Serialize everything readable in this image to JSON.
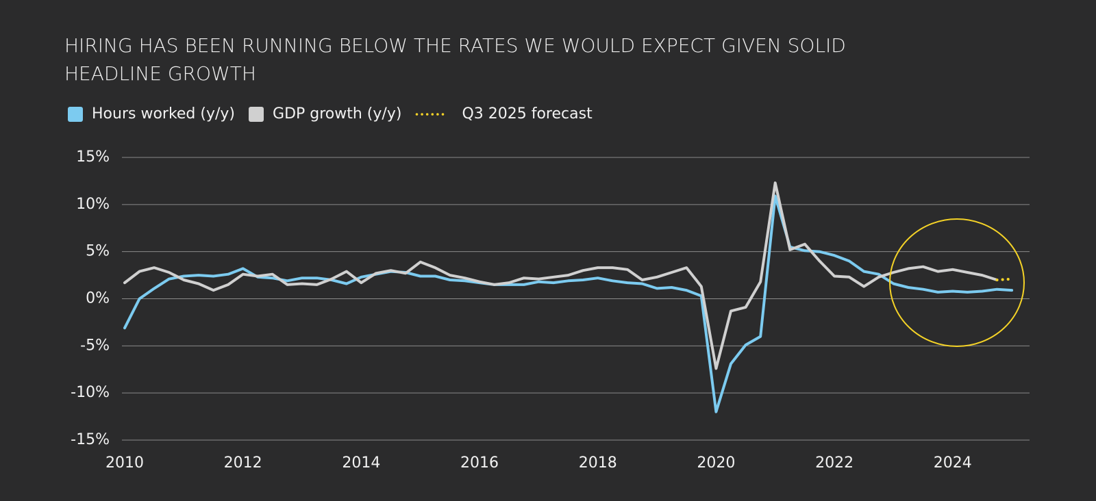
{
  "chart_data": {
    "type": "line",
    "title": [
      "HIRING HAS BEEN RUNNING BELOW THE RATES WE WOULD EXPECT GIVEN SOLID",
      "HEADLINE GROWTH"
    ],
    "x": [
      2010,
      2010.25,
      2010.5,
      2010.75,
      2011,
      2011.25,
      2011.5,
      2011.75,
      2012,
      2012.25,
      2012.5,
      2012.75,
      2013,
      2013.25,
      2013.5,
      2013.75,
      2014,
      2014.25,
      2014.5,
      2014.75,
      2015,
      2015.25,
      2015.5,
      2015.75,
      2016,
      2016.25,
      2016.5,
      2016.75,
      2017,
      2017.25,
      2017.5,
      2017.75,
      2018,
      2018.25,
      2018.5,
      2018.75,
      2019,
      2019.25,
      2019.5,
      2019.75,
      2020,
      2020.25,
      2020.5,
      2020.75,
      2021,
      2021.25,
      2021.5,
      2021.75,
      2022,
      2022.25,
      2022.5,
      2022.75,
      2023,
      2023.25,
      2023.5,
      2023.75,
      2024,
      2024.25,
      2024.5,
      2024.75,
      2025
    ],
    "series": [
      {
        "name": "Hours worked (y/y)",
        "color": "#7ccbf0",
        "style": "solid",
        "legend_marker": "square",
        "values": [
          -3.1,
          0.0,
          1.1,
          2.1,
          2.4,
          2.5,
          2.4,
          2.6,
          3.2,
          2.3,
          2.2,
          1.9,
          2.2,
          2.2,
          2.0,
          1.6,
          2.3,
          2.6,
          2.9,
          2.8,
          2.4,
          2.4,
          2.0,
          1.9,
          1.7,
          1.5,
          1.5,
          1.5,
          1.8,
          1.7,
          1.9,
          2.0,
          2.2,
          1.9,
          1.7,
          1.6,
          1.1,
          1.2,
          0.9,
          0.3,
          -12.0,
          -6.9,
          -4.9,
          -4.0,
          10.9,
          5.5,
          5.1,
          5.0,
          4.6,
          4.0,
          2.9,
          2.6,
          1.6,
          1.2,
          1.0,
          0.7,
          0.8,
          0.7,
          0.8,
          1.0,
          0.9
        ]
      },
      {
        "name": "GDP growth (y/y)",
        "color": "#d0d0d0",
        "style": "solid",
        "legend_marker": "square",
        "values": [
          1.7,
          2.9,
          3.3,
          2.8,
          2.0,
          1.6,
          0.9,
          1.5,
          2.6,
          2.4,
          2.6,
          1.5,
          1.6,
          1.5,
          2.1,
          2.9,
          1.7,
          2.7,
          3.0,
          2.7,
          3.9,
          3.3,
          2.5,
          2.2,
          1.8,
          1.5,
          1.7,
          2.2,
          2.1,
          2.3,
          2.5,
          3.0,
          3.3,
          3.3,
          3.1,
          2.0,
          2.3,
          2.8,
          3.3,
          1.3,
          -7.4,
          -1.3,
          -0.9,
          1.8,
          12.3,
          5.2,
          5.8,
          4.0,
          2.4,
          2.3,
          1.3,
          2.3,
          2.8,
          3.2,
          3.4,
          2.9,
          3.1,
          2.8,
          2.5,
          2.0,
          null
        ]
      },
      {
        "name": "Q3 2025 forecast",
        "color": "#f5d327",
        "style": "dotted",
        "legend_marker": "dots",
        "values": [
          null,
          null,
          null,
          null,
          null,
          null,
          null,
          null,
          null,
          null,
          null,
          null,
          null,
          null,
          null,
          null,
          null,
          null,
          null,
          null,
          null,
          null,
          null,
          null,
          null,
          null,
          null,
          null,
          null,
          null,
          null,
          null,
          null,
          null,
          null,
          null,
          null,
          null,
          null,
          null,
          null,
          null,
          null,
          null,
          null,
          null,
          null,
          null,
          null,
          null,
          null,
          null,
          null,
          null,
          null,
          null,
          null,
          null,
          null,
          2.0,
          2.1
        ]
      }
    ],
    "xlim": [
      2010,
      2025.3
    ],
    "xticks": [
      2010,
      2012,
      2014,
      2016,
      2018,
      2020,
      2022,
      2024
    ],
    "ylim": [
      -15,
      15
    ],
    "yticks": [
      {
        "value": 15,
        "label": "15%"
      },
      {
        "value": 10,
        "label": "10%"
      },
      {
        "value": 5,
        "label": "5%"
      },
      {
        "value": 0,
        "label": "0%"
      },
      {
        "value": -5,
        "label": "-5%"
      },
      {
        "value": -10,
        "label": "-10%"
      },
      {
        "value": -15,
        "label": "-15%"
      }
    ],
    "grid": true
  }
}
